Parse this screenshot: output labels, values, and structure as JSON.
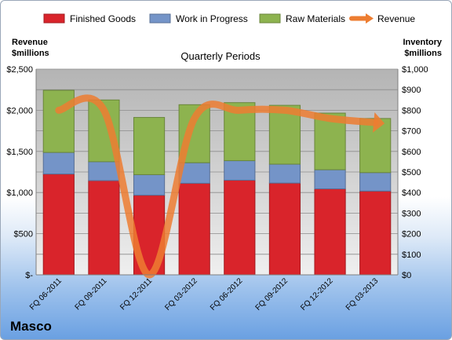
{
  "brand": "Masco",
  "chart_data": {
    "type": "bar",
    "stacked": true,
    "title": "Quarterly Periods",
    "left_axis_label": [
      "Revenue",
      "$millions"
    ],
    "right_axis_label": [
      "Inventory",
      "$millions"
    ],
    "categories": [
      "FQ 06-2011",
      "FQ 09-2011",
      "FQ 12-2011",
      "FQ 03-2012",
      "FQ 06-2012",
      "FQ 09-2012",
      "FQ 12-2012",
      "FQ 03-2013"
    ],
    "left_ylim": [
      0,
      2500
    ],
    "left_ticks": [
      "$-",
      "$500",
      "$1,000",
      "$1,500",
      "$2,000",
      "$2,500"
    ],
    "left_tick_values": [
      0,
      500,
      1000,
      1500,
      2000,
      2500
    ],
    "right_ylim": [
      0,
      1000
    ],
    "right_ticks": [
      "$0",
      "$100",
      "$200",
      "$300",
      "$400",
      "$500",
      "$600",
      "$700",
      "$800",
      "$900",
      "$1,000"
    ],
    "right_tick_values": [
      0,
      100,
      200,
      300,
      400,
      500,
      600,
      700,
      800,
      900,
      1000
    ],
    "grid": true,
    "legend_position": "top",
    "series": [
      {
        "name": "Finished Goods",
        "kind": "bar",
        "axis": "right",
        "color": "#d9242b",
        "values": [
          490,
          458,
          387,
          445,
          460,
          446,
          418,
          407
        ]
      },
      {
        "name": "Work in Progress",
        "kind": "bar",
        "axis": "right",
        "color": "#7494c8",
        "values": [
          105,
          92,
          100,
          100,
          95,
          92,
          93,
          90
        ]
      },
      {
        "name": "Raw Materials",
        "kind": "bar",
        "axis": "right",
        "color": "#8db34f",
        "values": [
          302,
          300,
          278,
          282,
          282,
          286,
          275,
          263
        ]
      },
      {
        "name": "Revenue",
        "kind": "line",
        "axis": "left",
        "color": "#ed7d31",
        "values": [
          2000,
          2000,
          0,
          1900,
          2000,
          2000,
          1900,
          1850
        ]
      }
    ]
  }
}
